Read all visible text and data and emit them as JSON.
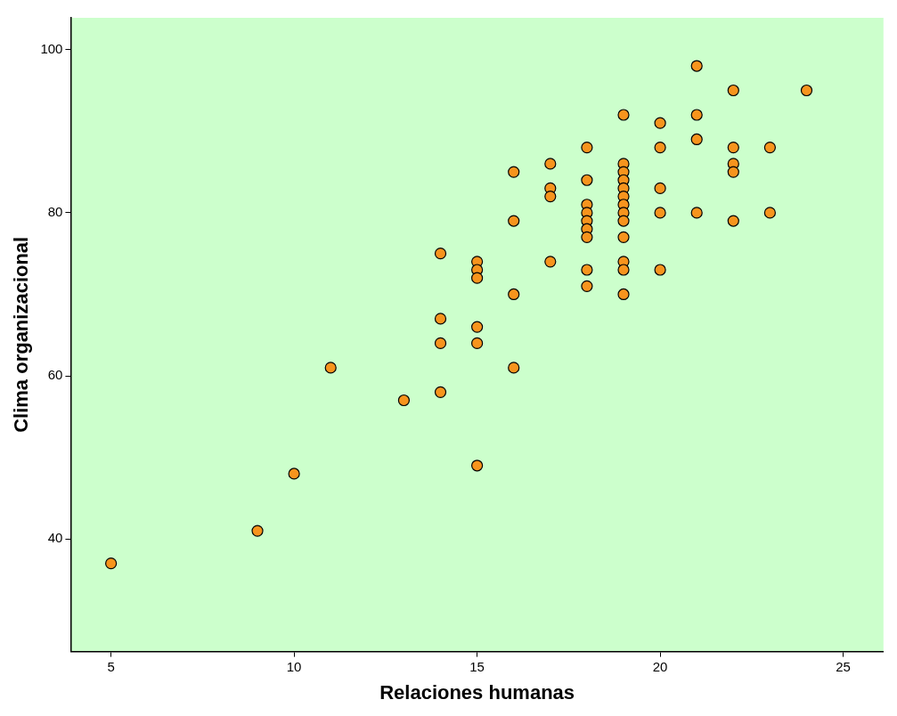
{
  "chart_data": {
    "type": "scatter",
    "xlabel": "Relaciones humanas",
    "ylabel": "Clima organizacional",
    "x": [
      5,
      9,
      10,
      11,
      13,
      14,
      14,
      14,
      14,
      15,
      15,
      15,
      15,
      15,
      15,
      16,
      16,
      16,
      16,
      17,
      17,
      17,
      17,
      18,
      18,
      18,
      18,
      18,
      18,
      18,
      18,
      18,
      19,
      19,
      19,
      19,
      19,
      19,
      19,
      19,
      19,
      19,
      19,
      19,
      19,
      20,
      20,
      20,
      20,
      20,
      21,
      21,
      21,
      21,
      22,
      22,
      22,
      22,
      22,
      23,
      23,
      24
    ],
    "values": [
      37,
      41,
      48,
      61,
      57,
      75,
      67,
      64,
      58,
      74,
      73,
      72,
      66,
      64,
      49,
      85,
      79,
      70,
      61,
      86,
      83,
      82,
      74,
      88,
      84,
      81,
      80,
      79,
      78,
      77,
      73,
      71,
      92,
      86,
      85,
      84,
      83,
      82,
      81,
      80,
      79,
      77,
      74,
      73,
      70,
      91,
      88,
      83,
      80,
      73,
      98,
      92,
      89,
      80,
      95,
      88,
      86,
      85,
      79,
      88,
      80,
      95
    ],
    "color": "#f7941d",
    "marker": "circle",
    "grid": false,
    "legend": false,
    "xlim": [
      3.9,
      26.1
    ],
    "ylim": [
      26.2,
      103.9
    ],
    "xticks": [
      5,
      10,
      15,
      20,
      25
    ],
    "yticks": [
      40,
      60,
      80,
      100
    ]
  }
}
